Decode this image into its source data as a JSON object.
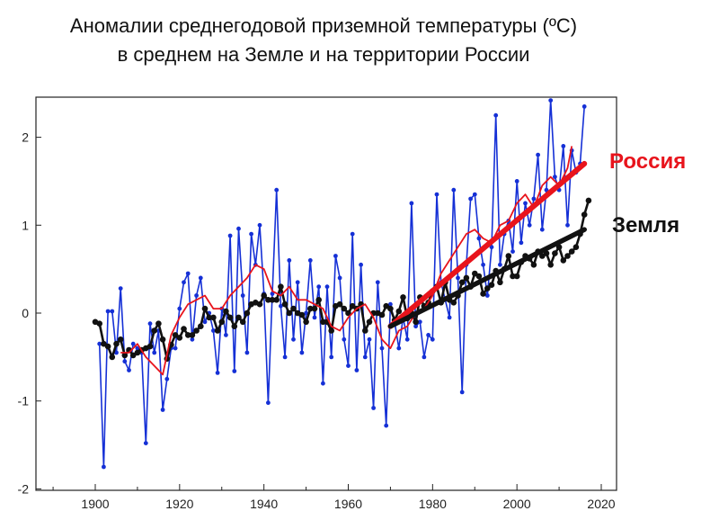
{
  "chart_data": {
    "type": "line",
    "title": "Аномалии среднегодовой приземной температуры (ºC)",
    "subtitle": "в среднем на Земле и на территории России",
    "xlabel": "",
    "ylabel": "",
    "xlim": [
      1885,
      2023
    ],
    "ylim": [
      -2,
      2.45
    ],
    "xticks": [
      1900,
      1920,
      1940,
      1960,
      1980,
      2000,
      2020
    ],
    "xtick_labels": [
      "1900",
      "1920",
      "1940",
      "1960",
      "1980",
      "2000",
      "2020"
    ],
    "yticks": [
      -2,
      -1,
      0,
      1,
      2
    ],
    "ytick_labels": [
      "-2",
      "-1",
      "0",
      "1",
      "2"
    ],
    "grid": false,
    "legend": [
      {
        "label": "Россия",
        "color": "#e8141c",
        "placement": "right"
      },
      {
        "label": "Земля",
        "color": "#111111",
        "placement": "right"
      }
    ],
    "series": [
      {
        "name": "Россия (annual)",
        "color": "#1530d6",
        "marker": "circle",
        "x": [
          1901,
          1902,
          1903,
          1904,
          1905,
          1906,
          1907,
          1908,
          1909,
          1910,
          1911,
          1912,
          1913,
          1914,
          1915,
          1916,
          1917,
          1918,
          1919,
          1920,
          1921,
          1922,
          1923,
          1924,
          1925,
          1926,
          1927,
          1928,
          1929,
          1930,
          1931,
          1932,
          1933,
          1934,
          1935,
          1936,
          1937,
          1938,
          1939,
          1940,
          1941,
          1942,
          1943,
          1944,
          1945,
          1946,
          1947,
          1948,
          1949,
          1950,
          1951,
          1952,
          1953,
          1954,
          1955,
          1956,
          1957,
          1958,
          1959,
          1960,
          1961,
          1962,
          1963,
          1964,
          1965,
          1966,
          1967,
          1968,
          1969,
          1970,
          1971,
          1972,
          1973,
          1974,
          1975,
          1976,
          1977,
          1978,
          1979,
          1980,
          1981,
          1982,
          1983,
          1984,
          1985,
          1986,
          1987,
          1988,
          1989,
          1990,
          1991,
          1992,
          1993,
          1994,
          1995,
          1996,
          1997,
          1998,
          1999,
          2000,
          2001,
          2002,
          2003,
          2004,
          2005,
          2006,
          2007,
          2008,
          2009,
          2010,
          2011,
          2012,
          2013,
          2014,
          2015,
          2016
        ],
        "values": [
          -0.35,
          -1.75,
          0.02,
          0.02,
          -0.45,
          0.28,
          -0.55,
          -0.65,
          -0.35,
          -0.4,
          -0.45,
          -1.48,
          -0.12,
          -0.45,
          -0.2,
          -1.1,
          -0.75,
          -0.4,
          -0.4,
          0.05,
          0.35,
          0.45,
          -0.3,
          0.2,
          0.4,
          -0.1,
          0.0,
          -0.2,
          -0.68,
          0.05,
          -0.25,
          0.88,
          -0.66,
          0.96,
          0.2,
          -0.45,
          0.9,
          0.55,
          1.0,
          0.22,
          -1.02,
          0.22,
          1.4,
          0.08,
          -0.5,
          0.6,
          -0.3,
          0.35,
          -0.45,
          0.0,
          0.6,
          -0.05,
          0.3,
          -0.8,
          0.3,
          -0.5,
          0.65,
          0.4,
          -0.3,
          -0.6,
          0.9,
          -0.65,
          0.55,
          -0.5,
          -0.3,
          -1.08,
          0.35,
          -0.4,
          -1.28,
          0.1,
          -0.1,
          -0.4,
          -0.05,
          -0.3,
          1.25,
          -0.15,
          -0.1,
          -0.5,
          -0.25,
          -0.3,
          1.35,
          0.35,
          0.15,
          -0.05,
          1.4,
          0.4,
          -0.9,
          0.55,
          1.3,
          1.35,
          0.85,
          0.55,
          0.2,
          0.75,
          2.25,
          0.55,
          0.9,
          1.05,
          0.7,
          1.5,
          0.8,
          1.25,
          1.0,
          1.3,
          1.8,
          0.95,
          1.4,
          2.42,
          1.55,
          1.4,
          1.9,
          1.0,
          1.85,
          1.6,
          1.7,
          2.35
        ]
      },
      {
        "name": "Россия (smoothed)",
        "color": "#e8141c",
        "x": [
          1906,
          1908,
          1910,
          1912,
          1914,
          1916,
          1918,
          1920,
          1922,
          1924,
          1926,
          1928,
          1930,
          1932,
          1934,
          1936,
          1938,
          1940,
          1942,
          1944,
          1946,
          1948,
          1950,
          1952,
          1954,
          1956,
          1958,
          1960,
          1962,
          1964,
          1966,
          1968,
          1970,
          1972,
          1974,
          1976,
          1978,
          1980,
          1982,
          1984,
          1986,
          1988,
          1990,
          1992,
          1994,
          1996,
          1998,
          2000,
          2002,
          2004,
          2006,
          2008,
          2010,
          2012,
          2013
        ],
        "values": [
          -0.45,
          -0.45,
          -0.35,
          -0.5,
          -0.6,
          -0.7,
          -0.25,
          -0.05,
          0.1,
          0.15,
          0.2,
          0.05,
          0.05,
          0.2,
          0.3,
          0.4,
          0.55,
          0.5,
          0.25,
          0.2,
          0.3,
          0.15,
          0.15,
          0.1,
          0.05,
          -0.15,
          -0.2,
          -0.05,
          0.05,
          0.1,
          -0.05,
          -0.3,
          -0.4,
          -0.2,
          -0.15,
          0.0,
          0.05,
          0.2,
          0.45,
          0.6,
          0.75,
          0.9,
          0.95,
          0.85,
          0.8,
          1.0,
          1.05,
          1.25,
          1.35,
          1.2,
          1.45,
          1.55,
          1.45,
          1.65,
          1.9
        ]
      },
      {
        "name": "Земля",
        "color": "#111111",
        "marker": "circle",
        "x": [
          1900,
          1901,
          1902,
          1903,
          1904,
          1905,
          1906,
          1907,
          1908,
          1909,
          1910,
          1911,
          1912,
          1913,
          1914,
          1915,
          1916,
          1917,
          1918,
          1919,
          1920,
          1921,
          1922,
          1923,
          1924,
          1925,
          1926,
          1927,
          1928,
          1929,
          1930,
          1931,
          1932,
          1933,
          1934,
          1935,
          1936,
          1937,
          1938,
          1939,
          1940,
          1941,
          1942,
          1943,
          1944,
          1945,
          1946,
          1947,
          1948,
          1949,
          1950,
          1951,
          1952,
          1953,
          1954,
          1955,
          1956,
          1957,
          1958,
          1959,
          1960,
          1961,
          1962,
          1963,
          1964,
          1965,
          1966,
          1967,
          1968,
          1969,
          1970,
          1971,
          1972,
          1973,
          1974,
          1975,
          1976,
          1977,
          1978,
          1979,
          1980,
          1981,
          1982,
          1983,
          1984,
          1985,
          1986,
          1987,
          1988,
          1989,
          1990,
          1991,
          1992,
          1993,
          1994,
          1995,
          1996,
          1997,
          1998,
          1999,
          2000,
          2001,
          2002,
          2003,
          2004,
          2005,
          2006,
          2007,
          2008,
          2009,
          2010,
          2011,
          2012,
          2013,
          2014,
          2015,
          2016,
          2017
        ],
        "values": [
          -0.1,
          -0.12,
          -0.35,
          -0.38,
          -0.5,
          -0.35,
          -0.3,
          -0.48,
          -0.42,
          -0.48,
          -0.45,
          -0.42,
          -0.4,
          -0.38,
          -0.2,
          -0.12,
          -0.3,
          -0.52,
          -0.36,
          -0.25,
          -0.28,
          -0.18,
          -0.25,
          -0.25,
          -0.2,
          -0.15,
          0.05,
          -0.05,
          -0.05,
          -0.2,
          -0.1,
          0.02,
          -0.05,
          -0.15,
          -0.05,
          -0.1,
          0.0,
          0.1,
          0.12,
          0.1,
          0.2,
          0.15,
          0.15,
          0.15,
          0.3,
          0.1,
          0.0,
          0.05,
          0.0,
          -0.02,
          -0.1,
          0.05,
          0.05,
          0.15,
          -0.1,
          -0.1,
          -0.2,
          0.08,
          0.1,
          0.05,
          0.0,
          0.08,
          0.05,
          0.1,
          -0.2,
          -0.1,
          0.0,
          0.0,
          -0.02,
          0.08,
          0.05,
          -0.08,
          0.02,
          0.18,
          -0.06,
          0.0,
          -0.1,
          0.18,
          0.08,
          0.12,
          0.25,
          0.3,
          0.12,
          0.35,
          0.15,
          0.12,
          0.2,
          0.35,
          0.4,
          0.3,
          0.45,
          0.42,
          0.22,
          0.28,
          0.32,
          0.48,
          0.35,
          0.5,
          0.65,
          0.42,
          0.42,
          0.58,
          0.65,
          0.62,
          0.55,
          0.7,
          0.65,
          0.68,
          0.55,
          0.68,
          0.75,
          0.6,
          0.65,
          0.7,
          0.75,
          0.9,
          1.12,
          1.28
        ]
      }
    ],
    "trend_lines": [
      {
        "name": "Россия trend",
        "color": "#e8141c",
        "x": [
          1970,
          2016
        ],
        "values": [
          -0.15,
          1.7
        ]
      },
      {
        "name": "Земля trend",
        "color": "#111111",
        "x": [
          1970,
          2016
        ],
        "values": [
          -0.15,
          0.95
        ]
      }
    ]
  }
}
